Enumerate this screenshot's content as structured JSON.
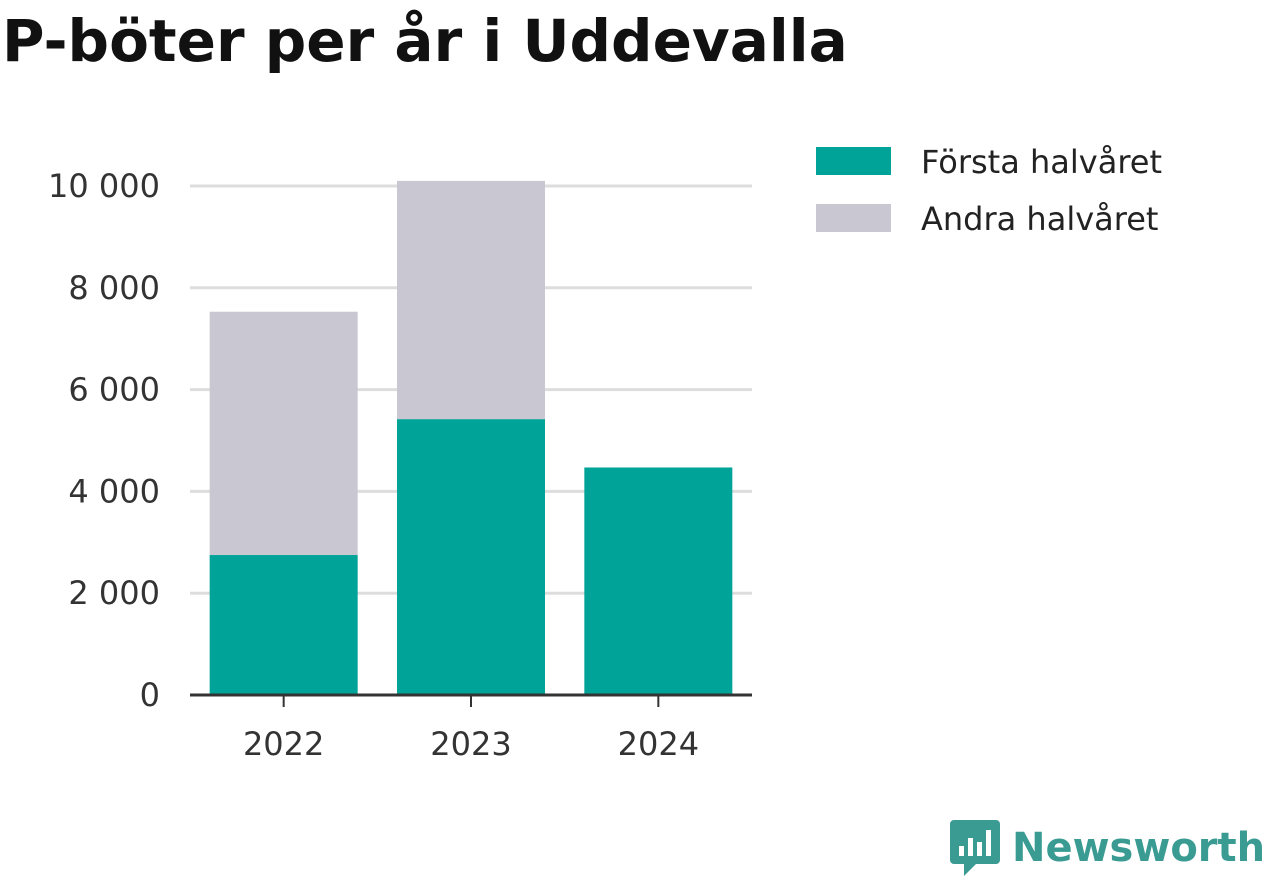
{
  "chart_data": {
    "type": "bar",
    "stacked": true,
    "title": "P-böter per år i Uddevalla",
    "categories": [
      "2022",
      "2023",
      "2024"
    ],
    "series": [
      {
        "name": "Första halvåret",
        "values": [
          2750,
          5420,
          4470
        ],
        "color": "#00a398"
      },
      {
        "name": "Andra halvåret",
        "values": [
          4780,
          4680,
          0
        ],
        "color": "#c8c7d2"
      }
    ],
    "ylim": [
      0,
      10000
    ],
    "yticks": [
      0,
      2000,
      4000,
      6000,
      8000,
      10000
    ],
    "ytick_labels": [
      "0",
      "2 000",
      "4 000",
      "6 000",
      "8 000",
      "10 000"
    ],
    "xlabel": "",
    "ylabel": "",
    "grid": true,
    "legend_position": "top-right"
  },
  "branding": {
    "logo_text": "Newsworthy",
    "logo_icon": "bar-chart-speech-bubble-icon",
    "logo_color": "#3a9b93"
  }
}
